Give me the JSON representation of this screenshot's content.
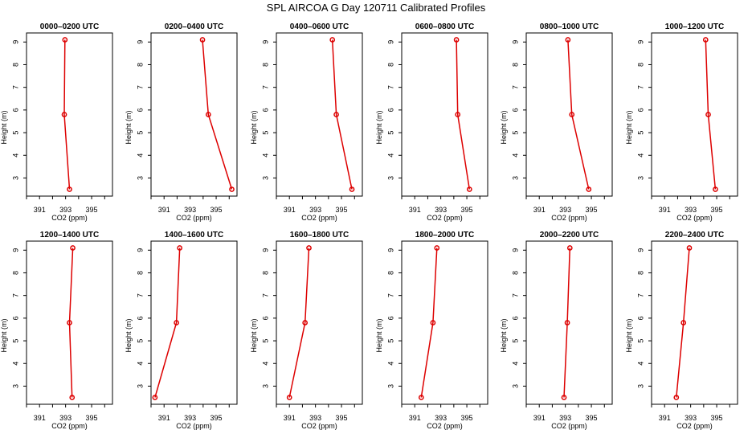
{
  "title": "SPL AIRCOA G  Day 120711  Calibrated Profiles",
  "colors": {
    "line": "#dd0000",
    "axis": "#000000",
    "background": "#ffffff"
  },
  "chart_data": [
    {
      "type": "line",
      "title": "0000–0200 UTC",
      "xlabel": "CO2 (ppm)",
      "ylabel": "Height (m)",
      "xlim": [
        390.0,
        396.6
      ],
      "ylim": [
        2.2,
        9.4
      ],
      "xticks": [
        391,
        393,
        395
      ],
      "yticks": [
        3,
        4,
        5,
        6,
        7,
        8,
        9
      ],
      "series": [
        {
          "name": "profile",
          "x": [
            393.3,
            392.9,
            392.95
          ],
          "y": [
            2.5,
            5.8,
            9.1
          ]
        }
      ]
    },
    {
      "type": "line",
      "title": "0200–0400 UTC",
      "xlabel": "CO2 (ppm)",
      "ylabel": "Height (m)",
      "xlim": [
        390.0,
        396.6
      ],
      "ylim": [
        2.2,
        9.4
      ],
      "xticks": [
        391,
        393,
        395
      ],
      "yticks": [
        3,
        4,
        5,
        6,
        7,
        8,
        9
      ],
      "series": [
        {
          "name": "profile",
          "x": [
            396.2,
            394.4,
            393.95
          ],
          "y": [
            2.5,
            5.8,
            9.1
          ]
        }
      ]
    },
    {
      "type": "line",
      "title": "0400–0600 UTC",
      "xlabel": "CO2 (ppm)",
      "ylabel": "Height (m)",
      "xlim": [
        390.0,
        396.6
      ],
      "ylim": [
        2.2,
        9.4
      ],
      "xticks": [
        391,
        393,
        395
      ],
      "yticks": [
        3,
        4,
        5,
        6,
        7,
        8,
        9
      ],
      "series": [
        {
          "name": "profile",
          "x": [
            395.8,
            394.6,
            394.3
          ],
          "y": [
            2.5,
            5.8,
            9.1
          ]
        }
      ]
    },
    {
      "type": "line",
      "title": "0600–0800 UTC",
      "xlabel": "CO2 (ppm)",
      "ylabel": "Height (m)",
      "xlim": [
        390.0,
        396.6
      ],
      "ylim": [
        2.2,
        9.4
      ],
      "xticks": [
        391,
        393,
        395
      ],
      "yticks": [
        3,
        4,
        5,
        6,
        7,
        8,
        9
      ],
      "series": [
        {
          "name": "profile",
          "x": [
            395.2,
            394.3,
            394.2
          ],
          "y": [
            2.5,
            5.8,
            9.1
          ]
        }
      ]
    },
    {
      "type": "line",
      "title": "0800–1000 UTC",
      "xlabel": "CO2 (ppm)",
      "ylabel": "Height (m)",
      "xlim": [
        390.0,
        396.6
      ],
      "ylim": [
        2.2,
        9.4
      ],
      "xticks": [
        391,
        393,
        395
      ],
      "yticks": [
        3,
        4,
        5,
        6,
        7,
        8,
        9
      ],
      "series": [
        {
          "name": "profile",
          "x": [
            394.8,
            393.5,
            393.2
          ],
          "y": [
            2.5,
            5.8,
            9.1
          ]
        }
      ]
    },
    {
      "type": "line",
      "title": "1000–1200 UTC",
      "xlabel": "CO2 (ppm)",
      "ylabel": "Height (m)",
      "xlim": [
        390.0,
        396.6
      ],
      "ylim": [
        2.2,
        9.4
      ],
      "xticks": [
        391,
        393,
        395
      ],
      "yticks": [
        3,
        4,
        5,
        6,
        7,
        8,
        9
      ],
      "series": [
        {
          "name": "profile",
          "x": [
            394.9,
            394.35,
            394.15
          ],
          "y": [
            2.5,
            5.8,
            9.1
          ]
        }
      ]
    },
    {
      "type": "line",
      "title": "1200–1400 UTC",
      "xlabel": "CO2 (ppm)",
      "ylabel": "Height (m)",
      "xlim": [
        390.0,
        396.6
      ],
      "ylim": [
        2.2,
        9.4
      ],
      "xticks": [
        391,
        393,
        395
      ],
      "yticks": [
        3,
        4,
        5,
        6,
        7,
        8,
        9
      ],
      "series": [
        {
          "name": "profile",
          "x": [
            393.5,
            393.3,
            393.55
          ],
          "y": [
            2.5,
            5.8,
            9.1
          ]
        }
      ]
    },
    {
      "type": "line",
      "title": "1400–1600 UTC",
      "xlabel": "CO2 (ppm)",
      "ylabel": "Height (m)",
      "xlim": [
        390.0,
        396.6
      ],
      "ylim": [
        2.2,
        9.4
      ],
      "xticks": [
        391,
        393,
        395
      ],
      "yticks": [
        3,
        4,
        5,
        6,
        7,
        8,
        9
      ],
      "series": [
        {
          "name": "profile",
          "x": [
            390.3,
            391.95,
            392.2
          ],
          "y": [
            2.5,
            5.8,
            9.1
          ]
        }
      ]
    },
    {
      "type": "line",
      "title": "1600–1800 UTC",
      "xlabel": "CO2 (ppm)",
      "ylabel": "Height (m)",
      "xlim": [
        390.0,
        396.6
      ],
      "ylim": [
        2.2,
        9.4
      ],
      "xticks": [
        391,
        393,
        395
      ],
      "yticks": [
        3,
        4,
        5,
        6,
        7,
        8,
        9
      ],
      "series": [
        {
          "name": "profile",
          "x": [
            391.0,
            392.2,
            392.5
          ],
          "y": [
            2.5,
            5.8,
            9.1
          ]
        }
      ]
    },
    {
      "type": "line",
      "title": "1800–2000 UTC",
      "xlabel": "CO2 (ppm)",
      "ylabel": "Height (m)",
      "xlim": [
        390.0,
        396.6
      ],
      "ylim": [
        2.2,
        9.4
      ],
      "xticks": [
        391,
        393,
        395
      ],
      "yticks": [
        3,
        4,
        5,
        6,
        7,
        8,
        9
      ],
      "series": [
        {
          "name": "profile",
          "x": [
            391.5,
            392.4,
            392.7
          ],
          "y": [
            2.5,
            5.8,
            9.1
          ]
        }
      ]
    },
    {
      "type": "line",
      "title": "2000–2200 UTC",
      "xlabel": "CO2 (ppm)",
      "ylabel": "Height (m)",
      "xlim": [
        390.0,
        396.6
      ],
      "ylim": [
        2.2,
        9.4
      ],
      "xticks": [
        391,
        393,
        395
      ],
      "yticks": [
        3,
        4,
        5,
        6,
        7,
        8,
        9
      ],
      "series": [
        {
          "name": "profile",
          "x": [
            392.9,
            393.15,
            393.35
          ],
          "y": [
            2.5,
            5.8,
            9.1
          ]
        }
      ]
    },
    {
      "type": "line",
      "title": "2200–2400 UTC",
      "xlabel": "CO2 (ppm)",
      "ylabel": "Height (m)",
      "xlim": [
        390.0,
        396.6
      ],
      "ylim": [
        2.2,
        9.4
      ],
      "xticks": [
        391,
        393,
        395
      ],
      "yticks": [
        3,
        4,
        5,
        6,
        7,
        8,
        9
      ],
      "series": [
        {
          "name": "profile",
          "x": [
            391.9,
            392.45,
            392.9
          ],
          "y": [
            2.5,
            5.8,
            9.1
          ]
        }
      ]
    }
  ]
}
